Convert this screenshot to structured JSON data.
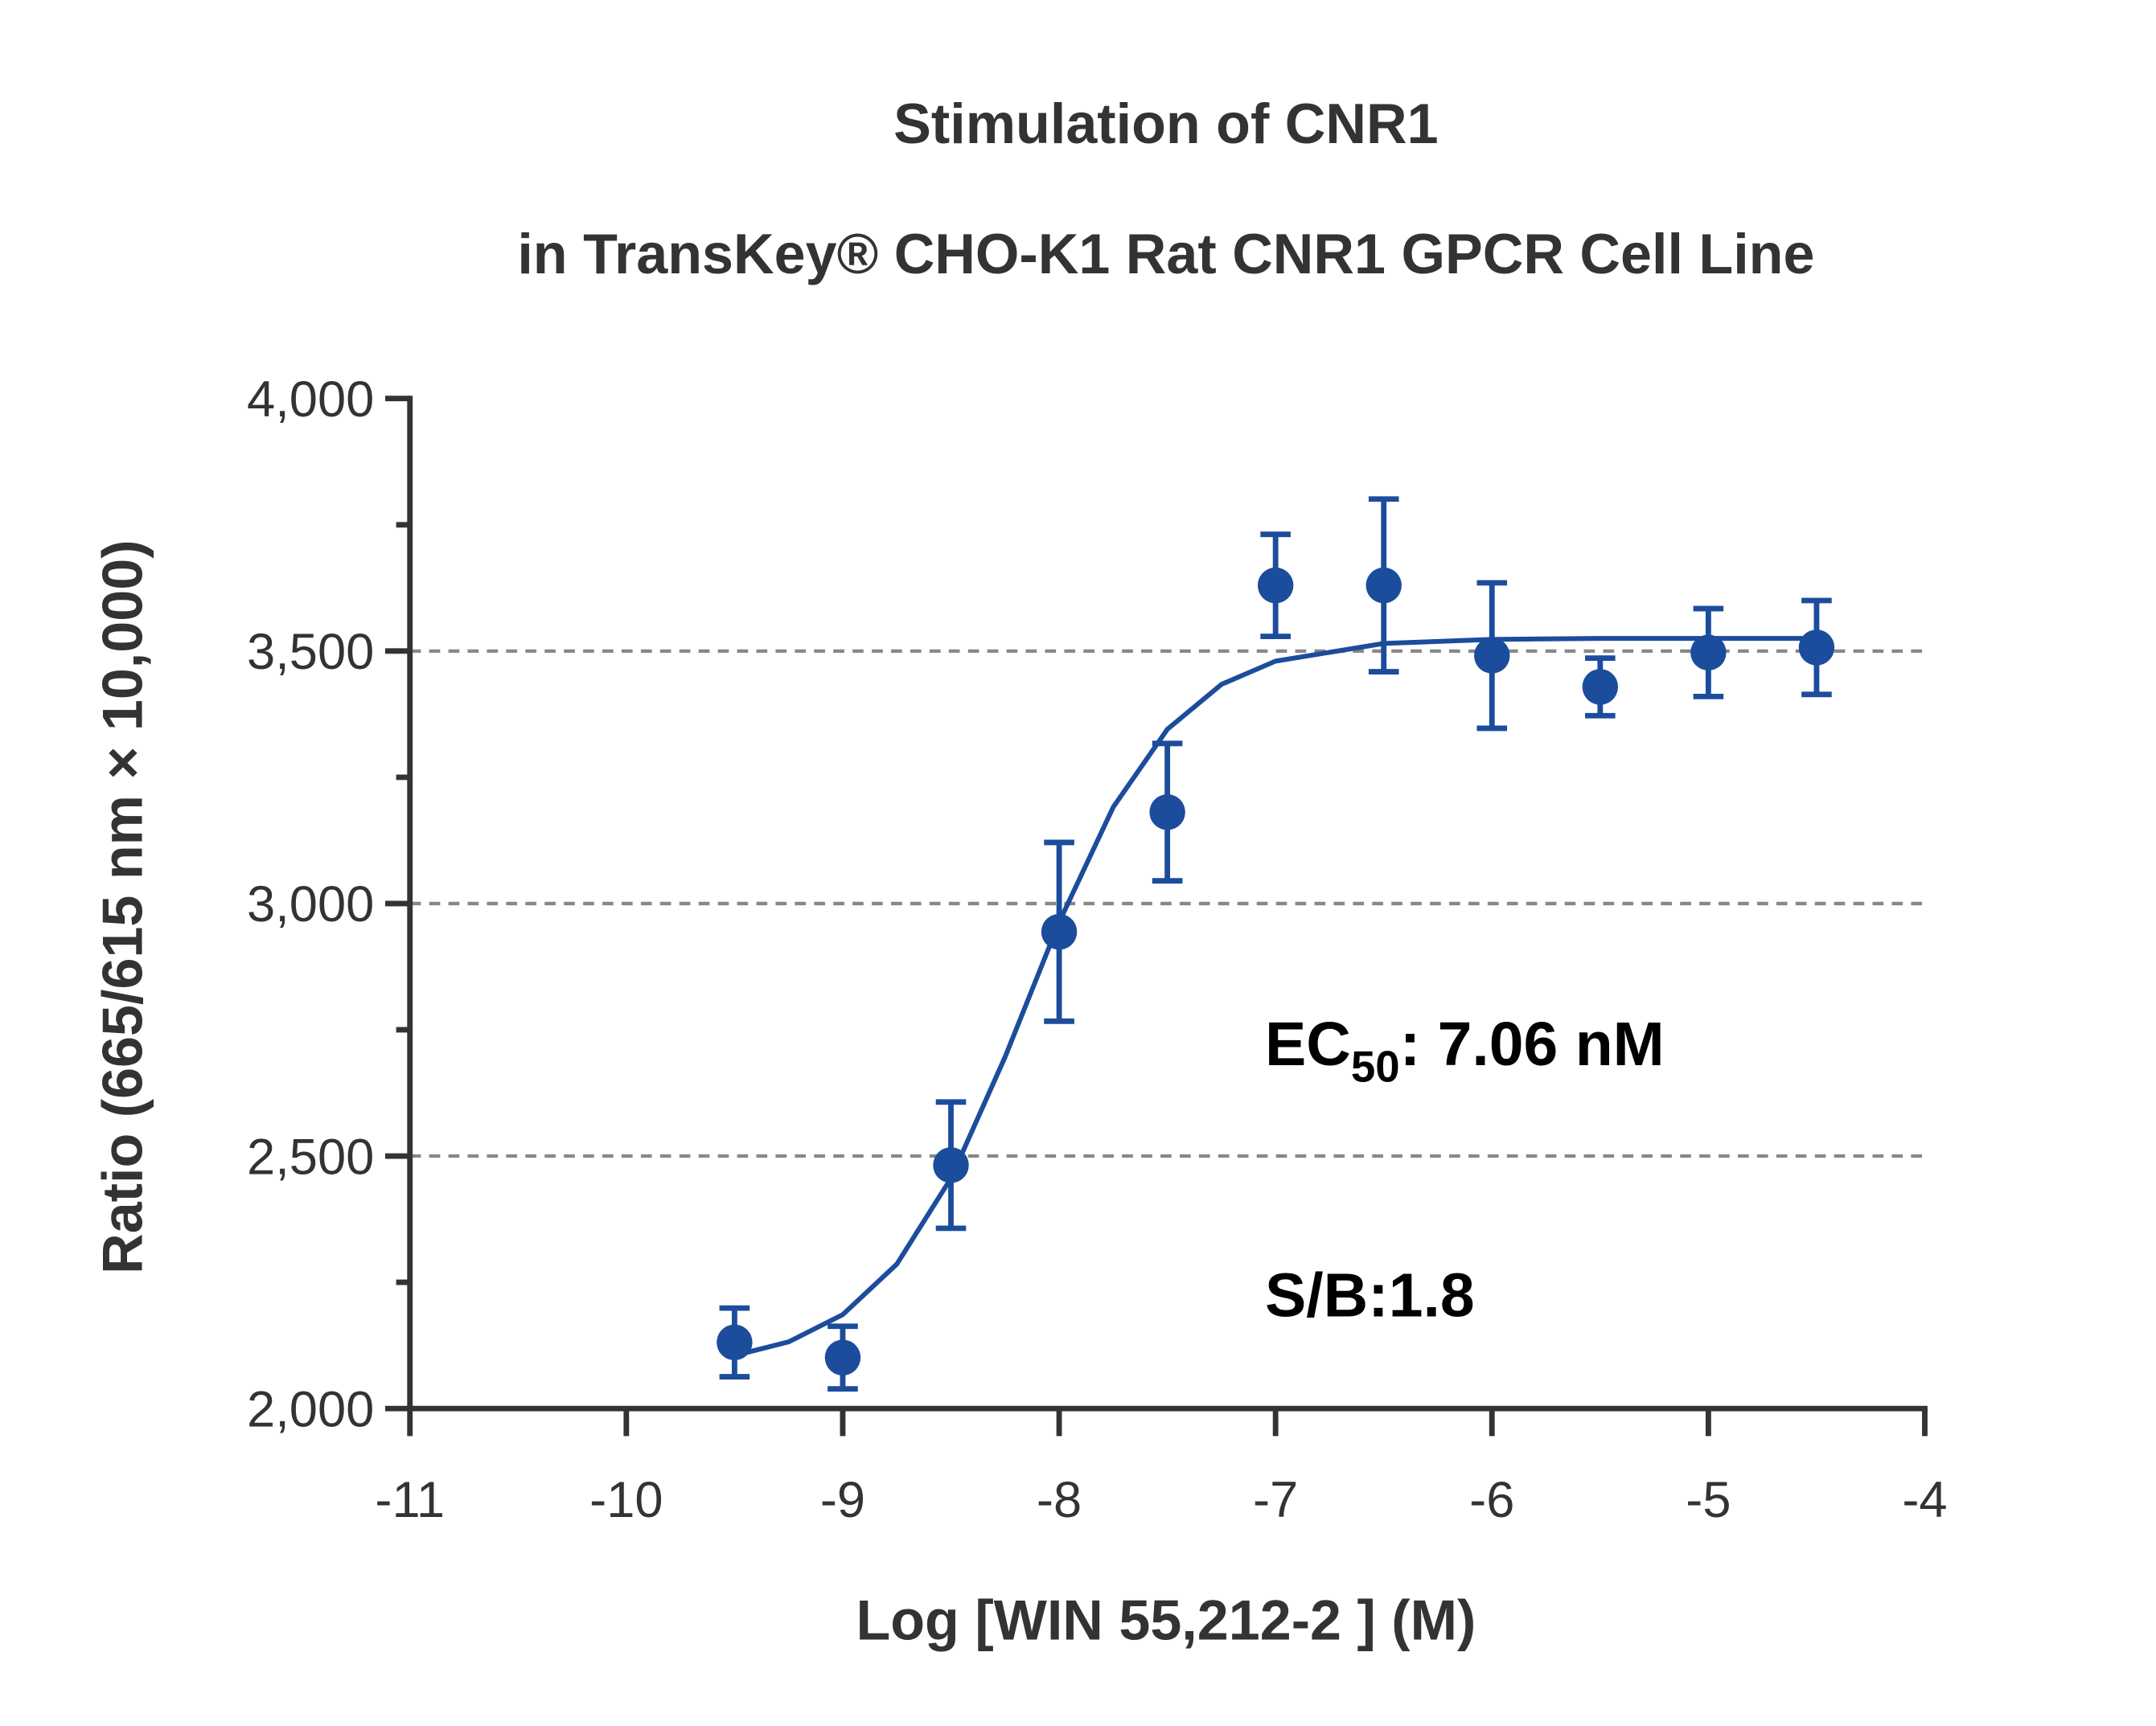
{
  "chart_data": {
    "type": "scatter",
    "title": [
      "Stimulation of  CNR1",
      "in TransKey® CHO-K1 Rat CNR1 GPCR Cell Line"
    ],
    "x_label": "Log [WIN 55,212-2 ]  (M)",
    "y_label": "Ratio (665/615 nm × 10,000)",
    "annotations": [
      {
        "parts": [
          "EC",
          "50",
          ": 7.06 nM"
        ]
      },
      {
        "parts": [
          "S/B:1.8"
        ]
      }
    ],
    "series": [
      {
        "name": "WIN 55,212-2",
        "color": "#1c4c9c",
        "x": [
          -9.5,
          -9,
          -8.5,
          -8,
          -7.5,
          -7,
          -6.5,
          -6,
          -5.5,
          -5,
          -4.5
        ],
        "values": [
          2131,
          2101,
          2482,
          2944,
          3181,
          3630,
          3630,
          3491,
          3429,
          3497,
          3507
        ],
        "errors": [
          68,
          62,
          125,
          177,
          136,
          101,
          171,
          144,
          57,
          87,
          93
        ]
      },
      {
        "name": "Fit",
        "color": "#1c4c9c",
        "kind": "line",
        "x": [
          -9.5,
          -9.25,
          -9,
          -8.75,
          -8.5,
          -8.25,
          -8,
          -7.75,
          -7.5,
          -7.25,
          -7,
          -6.5,
          -6,
          -5.5,
          -5,
          -4.5
        ],
        "values": [
          2105,
          2132,
          2186,
          2286,
          2456,
          2696,
          2963,
          3191,
          3345,
          3434,
          3480,
          3515,
          3523,
          3525,
          3525,
          3525
        ]
      }
    ],
    "xlim": [
      -11,
      -4
    ],
    "xticks": [
      -11,
      -10,
      -9,
      -8,
      -7,
      -6,
      -5,
      -4
    ],
    "ylim": [
      2000,
      4000
    ],
    "yticks": [
      {
        "value": 2000,
        "label": "2,000"
      },
      {
        "value": 2500,
        "label": "2,500"
      },
      {
        "value": 3000,
        "label": "3,000"
      },
      {
        "value": 3500,
        "label": "3,500"
      },
      {
        "value": 4000,
        "label": "4,000"
      }
    ],
    "y_minor_ticks": [
      2250,
      2750,
      3250,
      3750
    ],
    "grid": true
  }
}
